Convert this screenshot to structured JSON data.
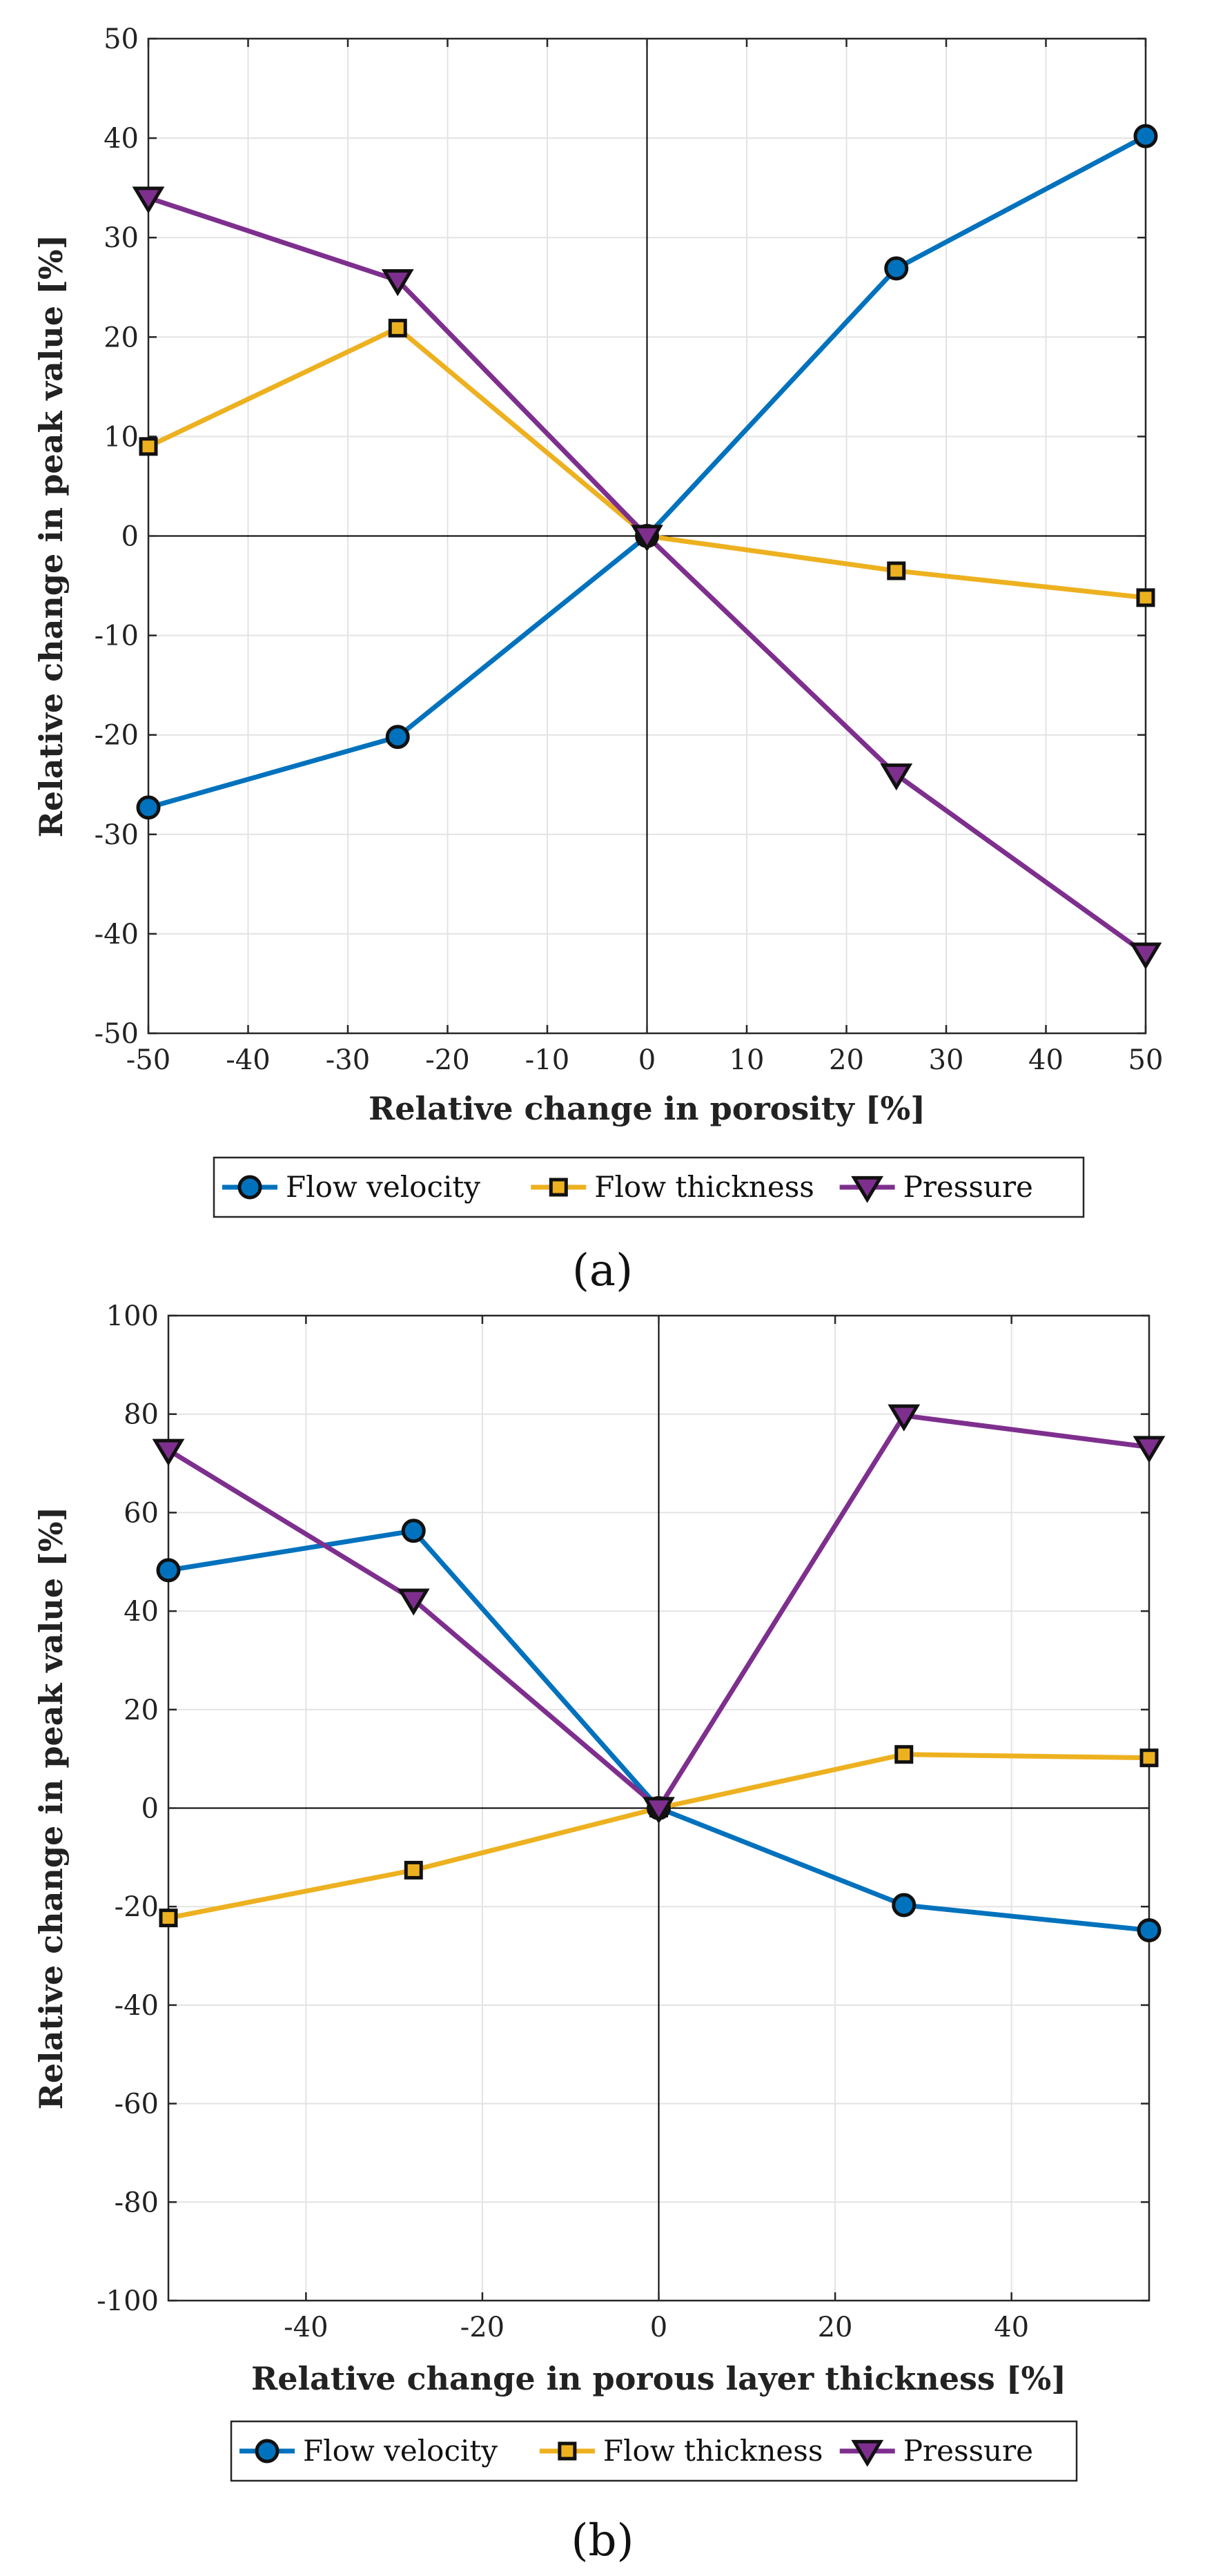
{
  "colors": {
    "flow_velocity": "#0072BD",
    "flow_thickness": "#EDB120",
    "pressure": "#7E2F8E",
    "marker_edge": "#111111"
  },
  "chart_data": [
    {
      "type": "line",
      "panel_label": "(a)",
      "title": "",
      "xlabel": "Relative change in porosity [%]",
      "ylabel": "Relative change in peak value [%]",
      "xlim": [
        -50,
        50
      ],
      "ylim": [
        -50,
        50
      ],
      "xticks": [
        -50,
        -40,
        -30,
        -20,
        -10,
        0,
        10,
        20,
        30,
        40,
        50
      ],
      "yticks": [
        -50,
        -40,
        -30,
        -20,
        -10,
        0,
        10,
        20,
        30,
        40,
        50
      ],
      "grid": true,
      "legend_position": "below",
      "x": [
        -50,
        -25,
        0,
        25,
        50
      ],
      "series": [
        {
          "name": "Flow velocity",
          "marker": "circle",
          "color_key": "flow_velocity",
          "values": [
            -27.3,
            -20.2,
            0,
            26.9,
            40.2
          ]
        },
        {
          "name": "Flow thickness",
          "marker": "square",
          "color_key": "flow_thickness",
          "values": [
            9,
            20.9,
            0,
            -3.5,
            -6.2
          ]
        },
        {
          "name": "Pressure",
          "marker": "triangle-down",
          "color_key": "pressure",
          "values": [
            34,
            25.7,
            0,
            -24,
            -42
          ]
        }
      ]
    },
    {
      "type": "line",
      "panel_label": "(b)",
      "title": "",
      "xlabel": "Relative change in porous layer thickness [%]",
      "ylabel": "Relative change in peak value [%]",
      "xlim": [
        -55.6,
        55.6
      ],
      "ylim": [
        -100,
        100
      ],
      "xticks": [
        -40,
        -20,
        0,
        20,
        40
      ],
      "yticks": [
        -100,
        -80,
        -60,
        -40,
        -20,
        0,
        20,
        40,
        60,
        80,
        100
      ],
      "grid": true,
      "legend_position": "below",
      "x": [
        -55.6,
        -27.8,
        0,
        27.8,
        55.6
      ],
      "series": [
        {
          "name": "Flow velocity",
          "marker": "circle",
          "color_key": "flow_velocity",
          "values": [
            48.3,
            56.3,
            0,
            -19.7,
            -24.8
          ]
        },
        {
          "name": "Flow thickness",
          "marker": "square",
          "color_key": "flow_thickness",
          "values": [
            -22.3,
            -12.6,
            0,
            10.9,
            10.2
          ]
        },
        {
          "name": "Pressure",
          "marker": "triangle-down",
          "color_key": "pressure",
          "values": [
            72.7,
            42.3,
            0,
            79.7,
            73.3
          ]
        }
      ]
    }
  ]
}
